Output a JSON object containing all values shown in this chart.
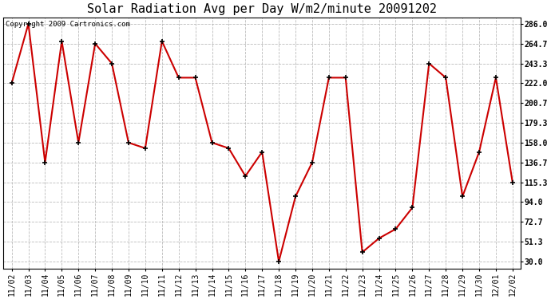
{
  "title": "Solar Radiation Avg per Day W/m2/minute 20091202",
  "copyright_text": "Copyright 2009 Cartronics.com",
  "x_labels": [
    "11/02",
    "11/03",
    "11/04",
    "11/05",
    "11/06",
    "11/07",
    "11/08",
    "11/09",
    "11/10",
    "11/11",
    "11/12",
    "11/13",
    "11/14",
    "11/15",
    "11/16",
    "11/17",
    "11/18",
    "11/19",
    "11/20",
    "11/21",
    "11/22",
    "11/23",
    "11/24",
    "11/25",
    "11/26",
    "11/27",
    "11/28",
    "11/29",
    "11/30",
    "12/01",
    "12/02"
  ],
  "y_values": [
    222.0,
    286.0,
    136.7,
    267.3,
    158.0,
    264.7,
    243.3,
    158.0,
    152.0,
    267.3,
    228.0,
    228.0,
    158.0,
    152.0,
    122.0,
    148.0,
    30.0,
    100.0,
    136.7,
    228.0,
    228.0,
    40.0,
    55.0,
    65.0,
    88.0,
    243.3,
    228.0,
    100.0,
    148.0,
    228.0,
    115.3
  ],
  "line_color": "#cc0000",
  "marker_color": "#000000",
  "marker": "+",
  "bg_color": "#ffffff",
  "plot_bg_color": "#ffffff",
  "grid_color": "#bbbbbb",
  "yticks": [
    30.0,
    51.3,
    72.7,
    94.0,
    115.3,
    136.7,
    158.0,
    179.3,
    200.7,
    222.0,
    243.3,
    264.7,
    286.0
  ],
  "ylim": [
    22.0,
    293.0
  ],
  "title_fontsize": 11,
  "tick_fontsize": 7,
  "copyright_fontsize": 6.5
}
